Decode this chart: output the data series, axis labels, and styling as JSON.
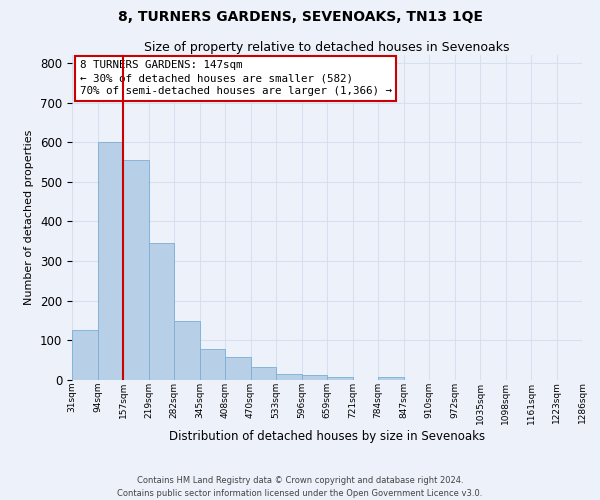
{
  "title": "8, TURNERS GARDENS, SEVENOAKS, TN13 1QE",
  "subtitle": "Size of property relative to detached houses in Sevenoaks",
  "xlabel": "Distribution of detached houses by size in Sevenoaks",
  "ylabel": "Number of detached properties",
  "bar_values": [
    125,
    600,
    555,
    345,
    148,
    78,
    57,
    34,
    16,
    12,
    7,
    0,
    8,
    0,
    0,
    0,
    0,
    0,
    0,
    0
  ],
  "tick_labels": [
    "31sqm",
    "94sqm",
    "157sqm",
    "219sqm",
    "282sqm",
    "345sqm",
    "408sqm",
    "470sqm",
    "533sqm",
    "596sqm",
    "659sqm",
    "721sqm",
    "784sqm",
    "847sqm",
    "910sqm",
    "972sqm",
    "1035sqm",
    "1098sqm",
    "1161sqm",
    "1223sqm",
    "1286sqm"
  ],
  "bar_color": "#b8cfe8",
  "bar_edge_color": "#7aadd4",
  "vline_color": "#cc0000",
  "vline_x": 2.0,
  "ylim": [
    0,
    820
  ],
  "yticks": [
    0,
    100,
    200,
    300,
    400,
    500,
    600,
    700,
    800
  ],
  "annotation_line1": "8 TURNERS GARDENS: 147sqm",
  "annotation_line2": "← 30% of detached houses are smaller (582)",
  "annotation_line3": "70% of semi-detached houses are larger (1,366) →",
  "annotation_box_facecolor": "#ffffff",
  "annotation_box_edgecolor": "#cc0000",
  "footer_line1": "Contains HM Land Registry data © Crown copyright and database right 2024.",
  "footer_line2": "Contains public sector information licensed under the Open Government Licence v3.0.",
  "background_color": "#edf1fa",
  "grid_color": "#d8dff0"
}
